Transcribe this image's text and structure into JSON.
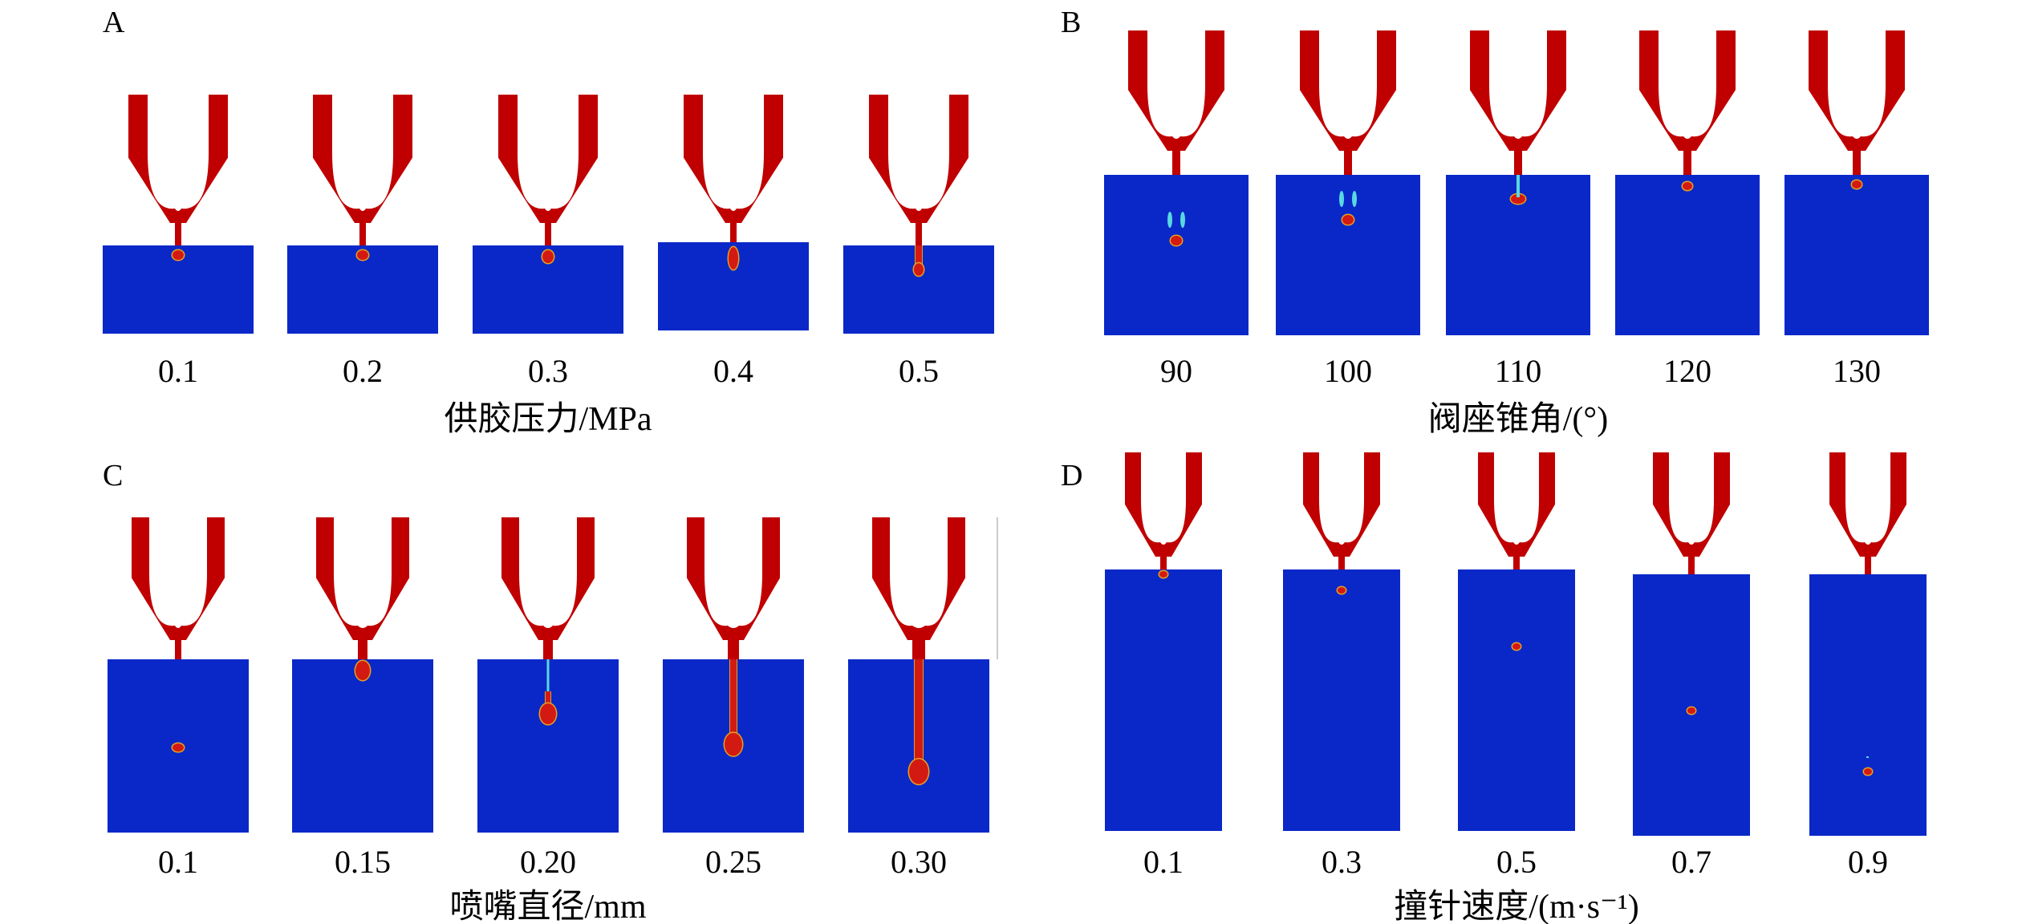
{
  "colors": {
    "nozzle": "#c00000",
    "fluid": "#0a28c8",
    "droplet": "#d21a12",
    "droplet_rim": "#e8a020",
    "spray": "#58d8e0"
  },
  "icons": {
    "nozzle": "valve-nozzle-icon",
    "droplet": "glue-droplet-icon"
  },
  "panels": [
    {
      "letter": "A",
      "axis_title": "供胶压力/MPa",
      "cases": [
        {
          "label": "0.1"
        },
        {
          "label": "0.2"
        },
        {
          "label": "0.3"
        },
        {
          "label": "0.4"
        },
        {
          "label": "0.5"
        }
      ]
    },
    {
      "letter": "B",
      "axis_title": "阀座锥角/(°)",
      "cases": [
        {
          "label": "90"
        },
        {
          "label": "100"
        },
        {
          "label": "110"
        },
        {
          "label": "120"
        },
        {
          "label": "130"
        }
      ]
    },
    {
      "letter": "C",
      "axis_title": "喷嘴直径/mm",
      "cases": [
        {
          "label": "0.1"
        },
        {
          "label": "0.15"
        },
        {
          "label": "0.20"
        },
        {
          "label": "0.25"
        },
        {
          "label": "0.30"
        }
      ]
    },
    {
      "letter": "D",
      "axis_title": "撞针速度/(m·s⁻¹)",
      "cases": [
        {
          "label": "0.1"
        },
        {
          "label": "0.3"
        },
        {
          "label": "0.5"
        },
        {
          "label": "0.7"
        },
        {
          "label": "0.9"
        }
      ]
    }
  ]
}
